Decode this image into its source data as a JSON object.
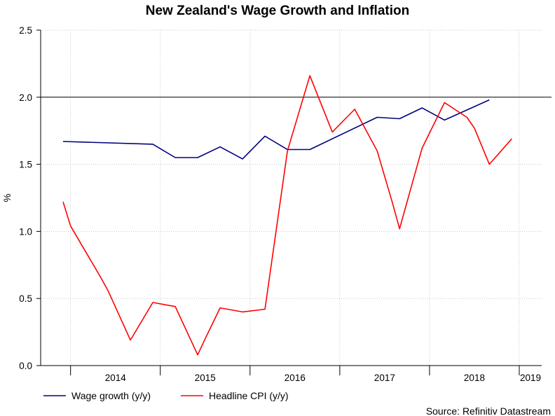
{
  "chart_data": {
    "type": "line",
    "title": "New Zealand's Wage Growth and Inflation",
    "ylabel": "%",
    "xlabel": "",
    "ylim": [
      0,
      2.5
    ],
    "yticks": [
      "0.0",
      "0.5",
      "1.0",
      "1.5",
      "2.0",
      "2.5"
    ],
    "year_labels": [
      "2014",
      "2015",
      "2016",
      "2017",
      "2018",
      "2019"
    ],
    "reference_line": 2.0,
    "grid": true,
    "legend_position": "bottom-left",
    "series": [
      {
        "name": "Wage growth (y/y)",
        "color": "#000080",
        "points": [
          {
            "x": "2013-12",
            "y": 1.67
          },
          {
            "x": "2014-12",
            "y": 1.65
          },
          {
            "x": "2015-03",
            "y": 1.55
          },
          {
            "x": "2015-06",
            "y": 1.55
          },
          {
            "x": "2015-09",
            "y": 1.63
          },
          {
            "x": "2015-12",
            "y": 1.54
          },
          {
            "x": "2016-03",
            "y": 1.71
          },
          {
            "x": "2016-06",
            "y": 1.61
          },
          {
            "x": "2016-09",
            "y": 1.61
          },
          {
            "x": "2017-06",
            "y": 1.85
          },
          {
            "x": "2017-09",
            "y": 1.84
          },
          {
            "x": "2017-12",
            "y": 1.92
          },
          {
            "x": "2018-03",
            "y": 1.83
          },
          {
            "x": "2018-09",
            "y": 1.98
          }
        ]
      },
      {
        "name": "Headline CPI (y/y)",
        "color": "#ff0000",
        "points": [
          {
            "x": "2013-12",
            "y": 1.22
          },
          {
            "x": "2014-01",
            "y": 1.04
          },
          {
            "x": "2014-05",
            "y": 0.66
          },
          {
            "x": "2014-06",
            "y": 0.56
          },
          {
            "x": "2014-09",
            "y": 0.19
          },
          {
            "x": "2014-12",
            "y": 0.47
          },
          {
            "x": "2015-02",
            "y": 0.45
          },
          {
            "x": "2015-03",
            "y": 0.44
          },
          {
            "x": "2015-06",
            "y": 0.08
          },
          {
            "x": "2015-07",
            "y": 0.2
          },
          {
            "x": "2015-09",
            "y": 0.43
          },
          {
            "x": "2015-12",
            "y": 0.4
          },
          {
            "x": "2016-03",
            "y": 0.42
          },
          {
            "x": "2016-06",
            "y": 1.6
          },
          {
            "x": "2016-09",
            "y": 2.16
          },
          {
            "x": "2016-12",
            "y": 1.74
          },
          {
            "x": "2017-03",
            "y": 1.91
          },
          {
            "x": "2017-06",
            "y": 1.6
          },
          {
            "x": "2017-08",
            "y": 1.22
          },
          {
            "x": "2017-09",
            "y": 1.02
          },
          {
            "x": "2017-12",
            "y": 1.62
          },
          {
            "x": "2018-03",
            "y": 1.96
          },
          {
            "x": "2018-06",
            "y": 1.85
          },
          {
            "x": "2018-07",
            "y": 1.77
          },
          {
            "x": "2018-09",
            "y": 1.5
          },
          {
            "x": "2018-12",
            "y": 1.69
          }
        ]
      }
    ]
  },
  "source": "Source: Refinitiv Datastream"
}
